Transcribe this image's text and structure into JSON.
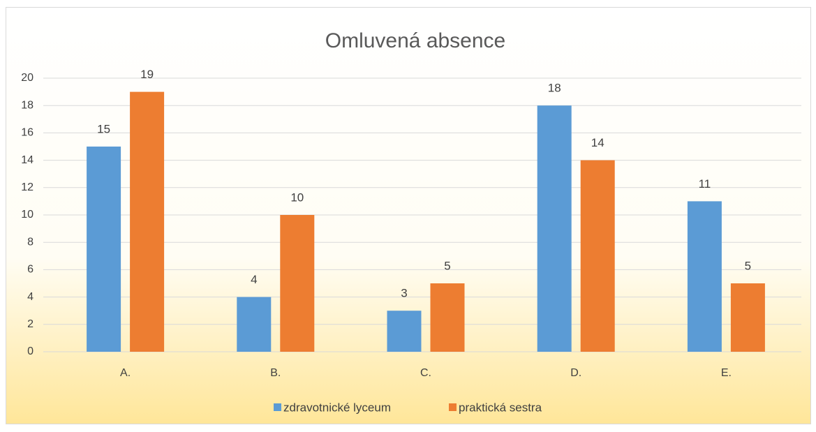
{
  "chart_data": {
    "type": "bar",
    "title": "Omluvená absence",
    "categories": [
      "A.",
      "B.",
      "C.",
      "D.",
      "E."
    ],
    "series": [
      {
        "name": "zdravotnické lyceum",
        "color": "#5b9bd5",
        "values": [
          15,
          4,
          3,
          18,
          11
        ]
      },
      {
        "name": "praktická sestra",
        "color": "#ed7d31",
        "values": [
          19,
          10,
          5,
          14,
          5
        ]
      }
    ],
    "ylim": [
      0,
      20
    ],
    "yticks": [
      0,
      2,
      4,
      6,
      8,
      10,
      12,
      14,
      16,
      18,
      20
    ],
    "grid": true,
    "legend": "bottom"
  }
}
